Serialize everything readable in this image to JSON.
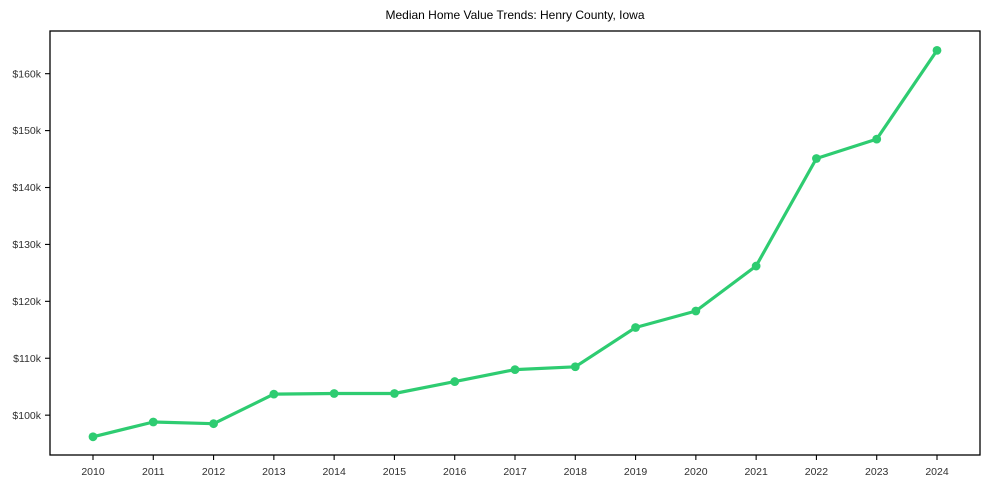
{
  "chart_data": {
    "type": "line",
    "title": "Median Home Value Trends: Henry County, Iowa",
    "xlabel": "",
    "ylabel": "",
    "x": [
      2010,
      2011,
      2012,
      2013,
      2014,
      2015,
      2016,
      2017,
      2018,
      2019,
      2020,
      2021,
      2022,
      2023,
      2024
    ],
    "x_tick_labels": [
      "2010",
      "2011",
      "2012",
      "2013",
      "2014",
      "2015",
      "2016",
      "2017",
      "2018",
      "2019",
      "2020",
      "2021",
      "2022",
      "2023",
      "2024"
    ],
    "series": [
      {
        "name": "Median Home Value",
        "values": [
          96200,
          98800,
          98500,
          103700,
          103800,
          103800,
          105900,
          108000,
          108500,
          115400,
          118300,
          126200,
          145100,
          148500,
          164100
        ]
      }
    ],
    "y_ticks": [
      100000,
      110000,
      120000,
      130000,
      140000,
      150000,
      160000
    ],
    "y_tick_labels": [
      "$100k",
      "$110k",
      "$120k",
      "$130k",
      "$140k",
      "$150k",
      "$160k"
    ],
    "ylim": [
      93000,
      167500
    ],
    "grid": false,
    "legend": null,
    "colors": {
      "line": "#2ecc71",
      "marker": "#2ecc71",
      "axis": "#000000",
      "tick_text": "#303030",
      "title_text": "#000000",
      "background": "#ffffff"
    },
    "marker": "circle"
  }
}
